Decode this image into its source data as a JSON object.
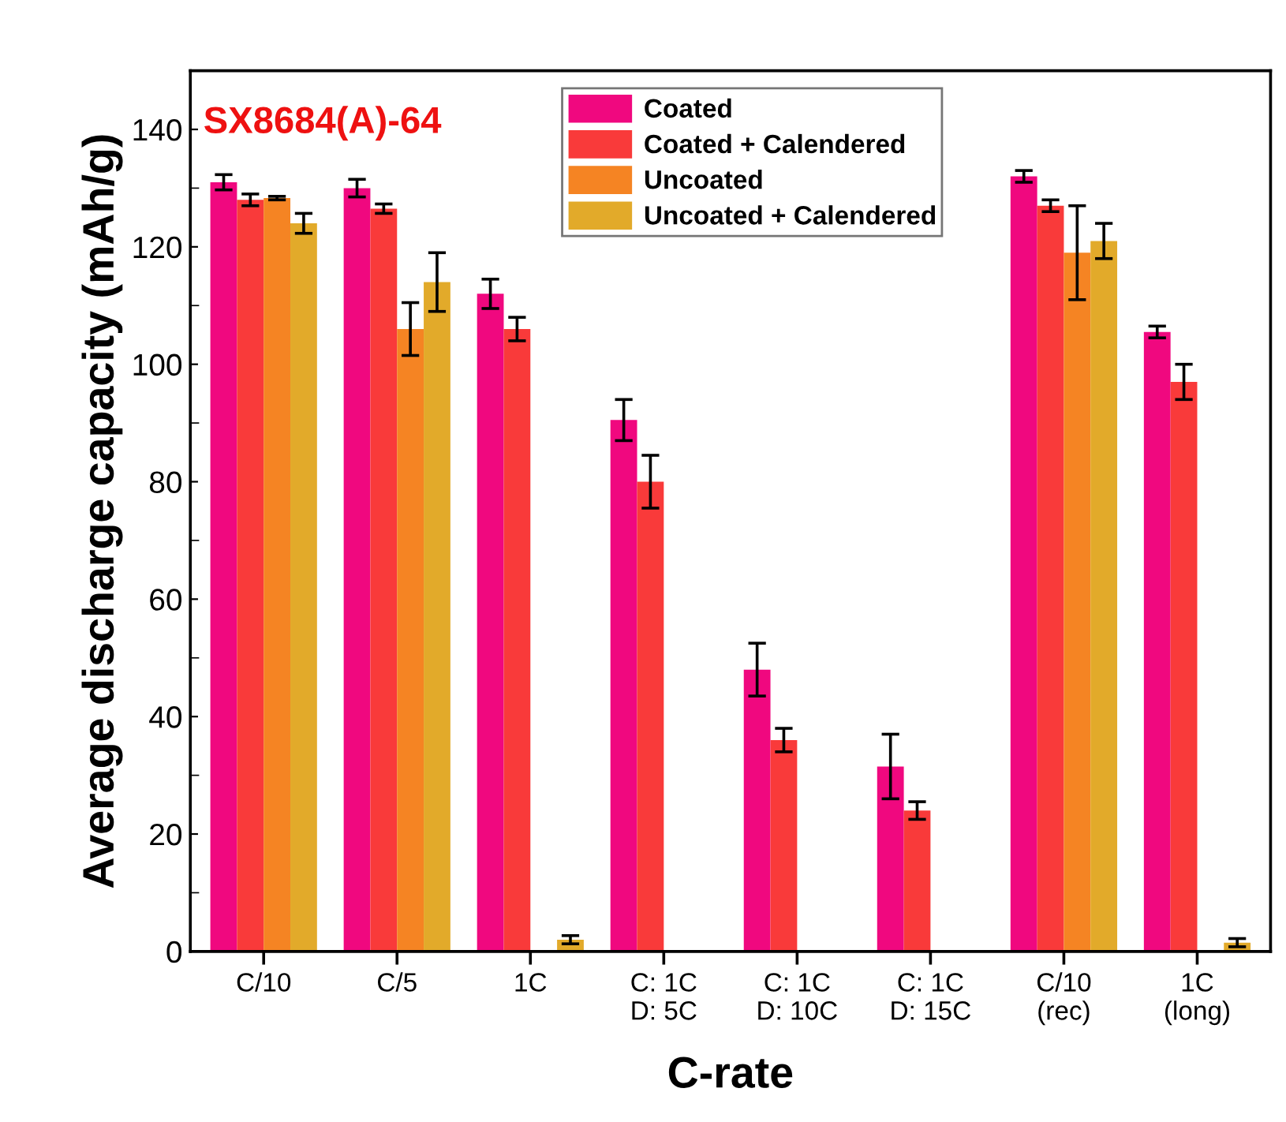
{
  "chart_data": {
    "type": "bar",
    "xlabel": "C-rate",
    "ylabel": "Average discharge capacity (mAh/g)",
    "categories": [
      "C/10",
      "C/5",
      "1C",
      "C: 1C\nD: 5C",
      "C: 1C\nD: 10C",
      "C: 1C\nD: 15C",
      "C/10\n(rec)",
      "1C\n(long)"
    ],
    "series": [
      {
        "name": "Coated",
        "color": "#f0087f",
        "values": [
          131,
          130,
          112,
          90.5,
          48,
          31.5,
          132,
          105.5
        ],
        "errors": [
          1.3,
          1.5,
          2.5,
          3.5,
          4.5,
          5.5,
          1,
          1
        ]
      },
      {
        "name": "Coated + Calendered",
        "color": "#f93a3a",
        "values": [
          128,
          126.5,
          106,
          80,
          36,
          24,
          127,
          97
        ],
        "errors": [
          1,
          0.8,
          2,
          4.5,
          2,
          1.5,
          1,
          3
        ]
      },
      {
        "name": "Uncoated",
        "color": "#f58423",
        "values": [
          128.3,
          106,
          0,
          null,
          null,
          null,
          119,
          0
        ],
        "errors": [
          0.3,
          4.5,
          null,
          null,
          null,
          null,
          8,
          null
        ]
      },
      {
        "name": "Uncoated + Calendered",
        "color": "#e2aa2a",
        "values": [
          124,
          114,
          2,
          null,
          null,
          null,
          121,
          1.5
        ],
        "errors": [
          1.7,
          5,
          0.7,
          null,
          null,
          null,
          3,
          0.7
        ]
      }
    ],
    "ylim": [
      0,
      150
    ],
    "yticks": [
      0,
      20,
      40,
      60,
      80,
      100,
      120,
      140
    ],
    "grid": false,
    "legend": "top",
    "annotations": [
      "SX8684(A)-64"
    ]
  }
}
